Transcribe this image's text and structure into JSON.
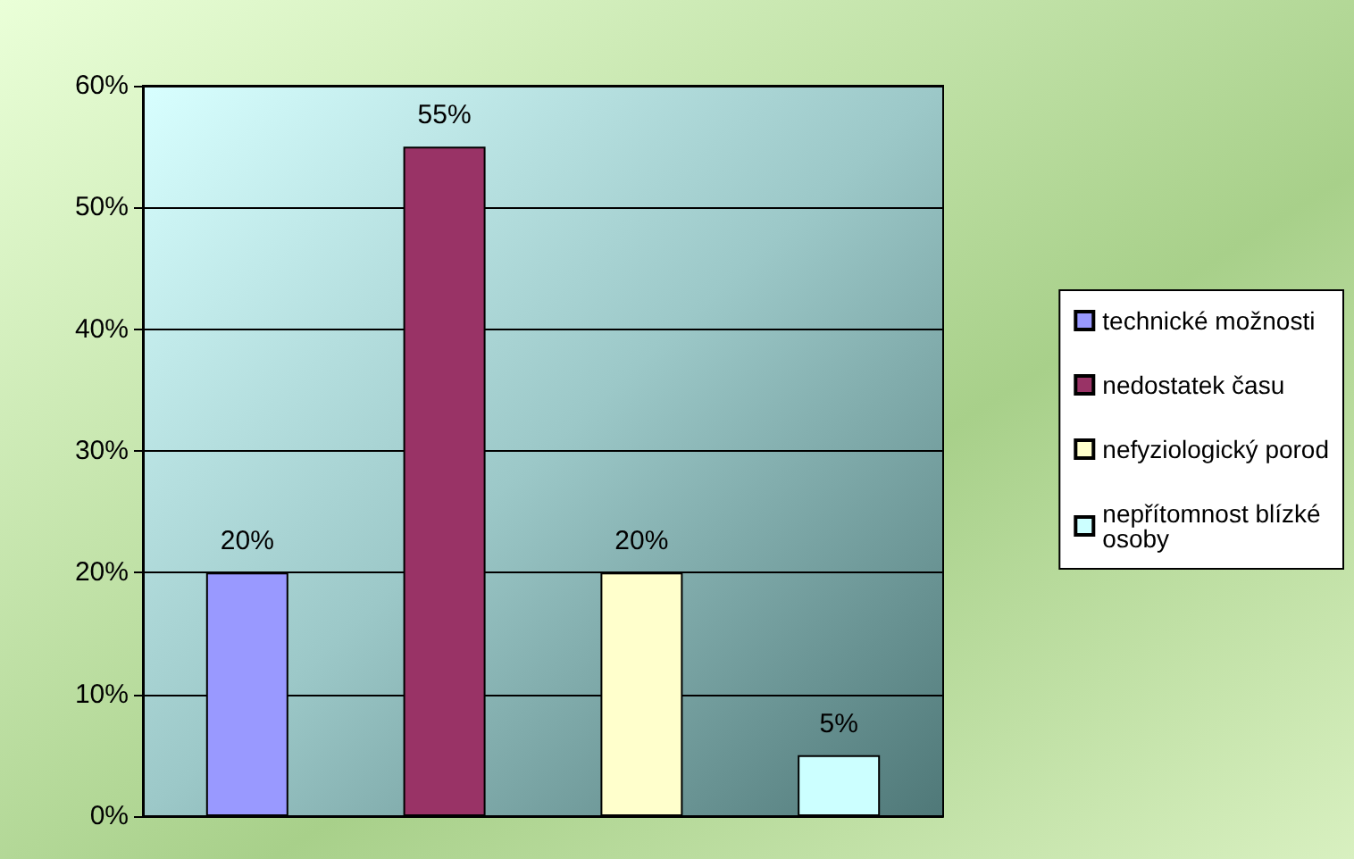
{
  "chart_data": {
    "type": "bar",
    "categories": [
      null
    ],
    "series": [
      {
        "name": "technické možnosti",
        "color": "#9999ff",
        "values": [
          20
        ],
        "value_labels": [
          "20%"
        ]
      },
      {
        "name": "nedostatek času",
        "color": "#993366",
        "values": [
          55
        ],
        "value_labels": [
          "55%"
        ]
      },
      {
        "name": "nefyziologický porod",
        "color": "#ffffcc",
        "values": [
          20
        ],
        "value_labels": [
          "20%"
        ]
      },
      {
        "name": "nepřítomnost blízké osoby",
        "color": "#ccffff",
        "values": [
          5
        ],
        "value_labels": [
          "5%"
        ]
      }
    ],
    "ylim": [
      0,
      60
    ],
    "yticks": [
      {
        "value": 0,
        "label": "0%"
      },
      {
        "value": 10,
        "label": "10%"
      },
      {
        "value": 20,
        "label": "20%"
      },
      {
        "value": 30,
        "label": "30%"
      },
      {
        "value": 40,
        "label": "40%"
      },
      {
        "value": 50,
        "label": "50%"
      },
      {
        "value": 60,
        "label": "60%"
      }
    ],
    "grid": "y",
    "legend": "right"
  }
}
